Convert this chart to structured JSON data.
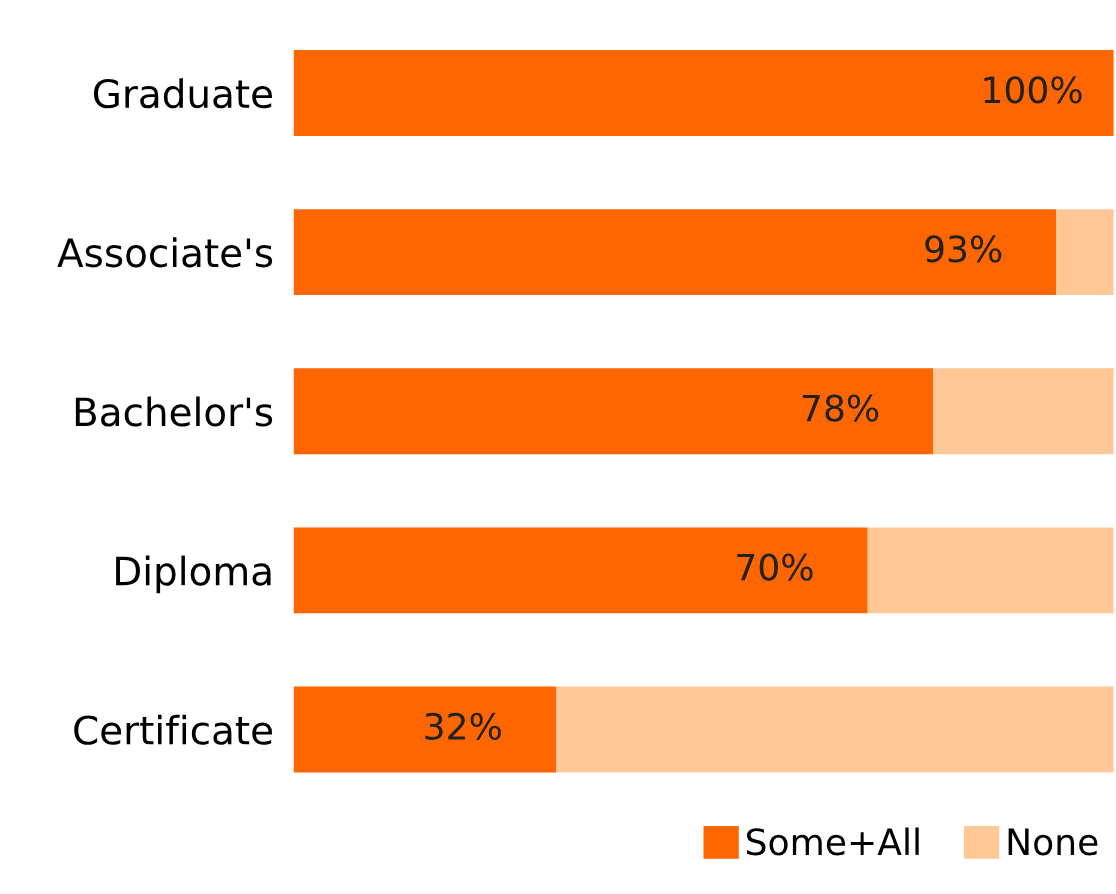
{
  "chart_data": {
    "type": "bar",
    "orientation": "horizontal",
    "stacked": true,
    "categories": [
      "Graduate",
      "Associate's",
      "Bachelor's",
      "Diploma",
      "Certificate"
    ],
    "series": [
      {
        "name": "Some+All",
        "color": "#ff6600",
        "values": [
          100,
          93,
          78,
          70,
          32
        ],
        "value_labels": [
          "100%",
          "93%",
          "78%",
          "70%",
          "32%"
        ]
      },
      {
        "name": "None",
        "color": "#ffc896",
        "values": [
          0,
          7,
          22,
          30,
          68
        ]
      }
    ],
    "xlim": [
      0,
      100
    ],
    "tick_labels": "y",
    "grid": false,
    "legend": "bottom right"
  }
}
